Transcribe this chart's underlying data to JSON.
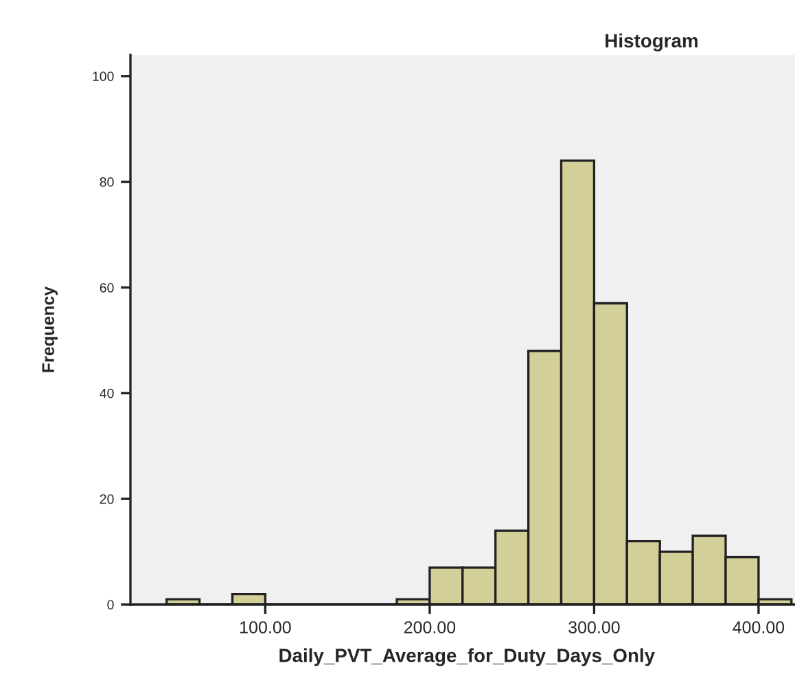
{
  "chart_data": {
    "type": "histogram",
    "title": "Histogram",
    "xlabel": "Daily_PVT_Average_for_Duty_Days_Only",
    "ylabel": "Frequency",
    "bins": [
      40,
      60,
      80,
      100,
      120,
      140,
      160,
      180,
      200,
      220,
      240,
      260,
      280,
      300,
      320,
      340,
      360,
      380,
      400,
      420
    ],
    "values": [
      1,
      0,
      2,
      0,
      0,
      0,
      0,
      1,
      7,
      7,
      14,
      48,
      84,
      57,
      12,
      10,
      13,
      9,
      1
    ],
    "color": "#d3cf99",
    "xlim": [
      18,
      427
    ],
    "ylim": [
      0,
      104
    ],
    "xticks": [
      {
        "value": 100,
        "label": "100.00"
      },
      {
        "value": 200,
        "label": "200.00"
      },
      {
        "value": 300,
        "label": "300.00"
      },
      {
        "value": 400,
        "label": "400.00"
      }
    ],
    "yticks": [
      0,
      20,
      40,
      60,
      80,
      100
    ],
    "grid": false
  }
}
